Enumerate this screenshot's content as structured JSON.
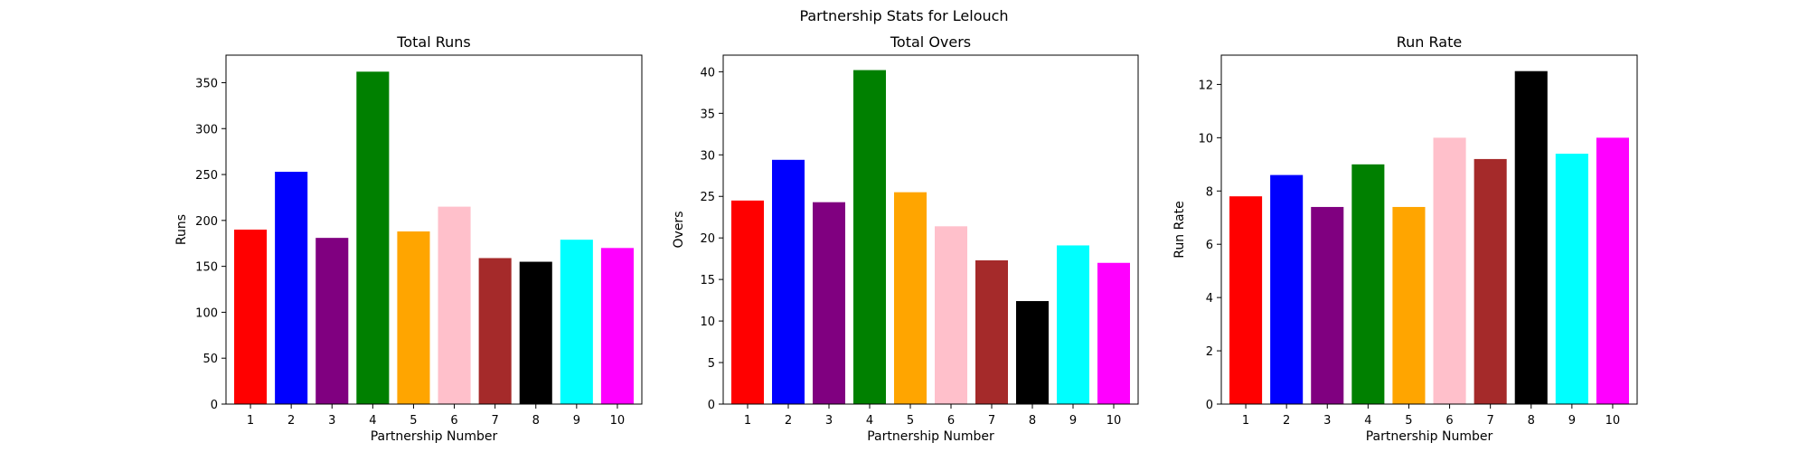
{
  "figure": {
    "suptitle": "Partnership Stats for Lelouch"
  },
  "chart_data": [
    {
      "type": "bar",
      "title": "Total Runs",
      "xlabel": "Partnership Number",
      "ylabel": "Runs",
      "categories": [
        "1",
        "2",
        "3",
        "4",
        "5",
        "6",
        "7",
        "8",
        "9",
        "10"
      ],
      "values": [
        190,
        253,
        181,
        362,
        188,
        215,
        159,
        155,
        179,
        170
      ],
      "colors": [
        "#ff0000",
        "#0000ff",
        "#800080",
        "#008000",
        "#ffa500",
        "#ffc0cb",
        "#a52a2a",
        "#000000",
        "#00ffff",
        "#ff00ff"
      ],
      "ylim": [
        0,
        380
      ],
      "yticks": [
        0,
        50,
        100,
        150,
        200,
        250,
        300,
        350
      ],
      "grid": false
    },
    {
      "type": "bar",
      "title": "Total Overs",
      "xlabel": "Partnership Number",
      "ylabel": "Overs",
      "categories": [
        "1",
        "2",
        "3",
        "4",
        "5",
        "6",
        "7",
        "8",
        "9",
        "10"
      ],
      "values": [
        24.5,
        29.4,
        24.3,
        40.2,
        25.5,
        21.4,
        17.3,
        12.4,
        19.1,
        17.0
      ],
      "colors": [
        "#ff0000",
        "#0000ff",
        "#800080",
        "#008000",
        "#ffa500",
        "#ffc0cb",
        "#a52a2a",
        "#000000",
        "#00ffff",
        "#ff00ff"
      ],
      "ylim": [
        0,
        42
      ],
      "yticks": [
        0,
        5,
        10,
        15,
        20,
        25,
        30,
        35,
        40
      ],
      "grid": false
    },
    {
      "type": "bar",
      "title": "Run Rate",
      "xlabel": "Partnership Number",
      "ylabel": "Run Rate",
      "categories": [
        "1",
        "2",
        "3",
        "4",
        "5",
        "6",
        "7",
        "8",
        "9",
        "10"
      ],
      "values": [
        7.8,
        8.6,
        7.4,
        9.0,
        7.4,
        10.0,
        9.2,
        12.5,
        9.4,
        10.0
      ],
      "colors": [
        "#ff0000",
        "#0000ff",
        "#800080",
        "#008000",
        "#ffa500",
        "#ffc0cb",
        "#a52a2a",
        "#000000",
        "#00ffff",
        "#ff00ff"
      ],
      "ylim": [
        0,
        13.1
      ],
      "yticks": [
        0,
        2,
        4,
        6,
        8,
        10,
        12
      ],
      "grid": false
    }
  ]
}
